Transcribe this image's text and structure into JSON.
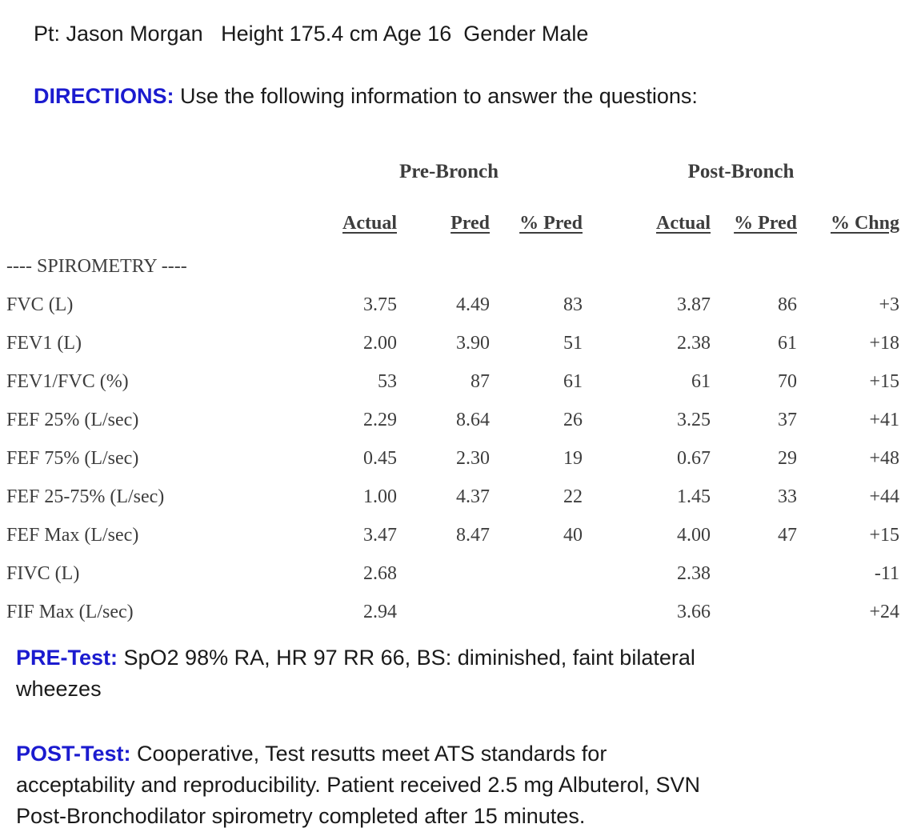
{
  "patient": {
    "line": "Pt: Jason Morgan   Height 175.4 cm Age 16  Gender Male"
  },
  "directions": {
    "label": "DIRECTIONS:",
    "text": " Use the following information to answer the questions:"
  },
  "table": {
    "group_headers": {
      "pre": "Pre-Bronch",
      "post": "Post-Bronch"
    },
    "col_headers": [
      "Actual",
      "Pred",
      "% Pred",
      "Actual",
      "% Pred",
      "% Chng"
    ],
    "section_label": "---- SPIROMETRY ----",
    "rows": [
      {
        "label": "FVC (L)",
        "values": [
          "3.75",
          "4.49",
          "83",
          "3.87",
          "86",
          "+3"
        ]
      },
      {
        "label": "FEV1 (L)",
        "values": [
          "2.00",
          "3.90",
          "51",
          "2.38",
          "61",
          "+18"
        ]
      },
      {
        "label": "FEV1/FVC (%)",
        "values": [
          "53",
          "87",
          "61",
          "61",
          "70",
          "+15"
        ]
      },
      {
        "label": "FEF 25% (L/sec)",
        "values": [
          "2.29",
          "8.64",
          "26",
          "3.25",
          "37",
          "+41"
        ]
      },
      {
        "label": "FEF 75% (L/sec)",
        "values": [
          "0.45",
          "2.30",
          "19",
          "0.67",
          "29",
          "+48"
        ]
      },
      {
        "label": "FEF 25-75% (L/sec)",
        "values": [
          "1.00",
          "4.37",
          "22",
          "1.45",
          "33",
          "+44"
        ]
      },
      {
        "label": "FEF Max (L/sec)",
        "values": [
          "3.47",
          "8.47",
          "40",
          "4.00",
          "47",
          "+15"
        ]
      },
      {
        "label": "FIVC (L)",
        "values": [
          "2.68",
          "",
          "",
          "2.38",
          "",
          "-11"
        ]
      },
      {
        "label": "FIF Max (L/sec)",
        "values": [
          "2.94",
          "",
          "",
          "3.66",
          "",
          "+24"
        ]
      }
    ]
  },
  "pre_test": {
    "label": "PRE-Test:",
    "text": " SpO2 98% RA, HR 97 RR 66, BS: diminished, faint bilateral\nwheezes"
  },
  "post_test": {
    "label": "POST-Test:",
    "text": " Cooperative, Test resutts meet ATS standards for\nacceptability and reproducibility. Patient received 2.5 mg Albuterol, SVN\nPost-Bronchodilator spirometry completed after 15 minutes."
  },
  "colors": {
    "heading_blue": "#1b1bcf",
    "table_ink": "#3d3d3d",
    "body_ink": "#1a1a1a",
    "background": "#ffffff"
  }
}
